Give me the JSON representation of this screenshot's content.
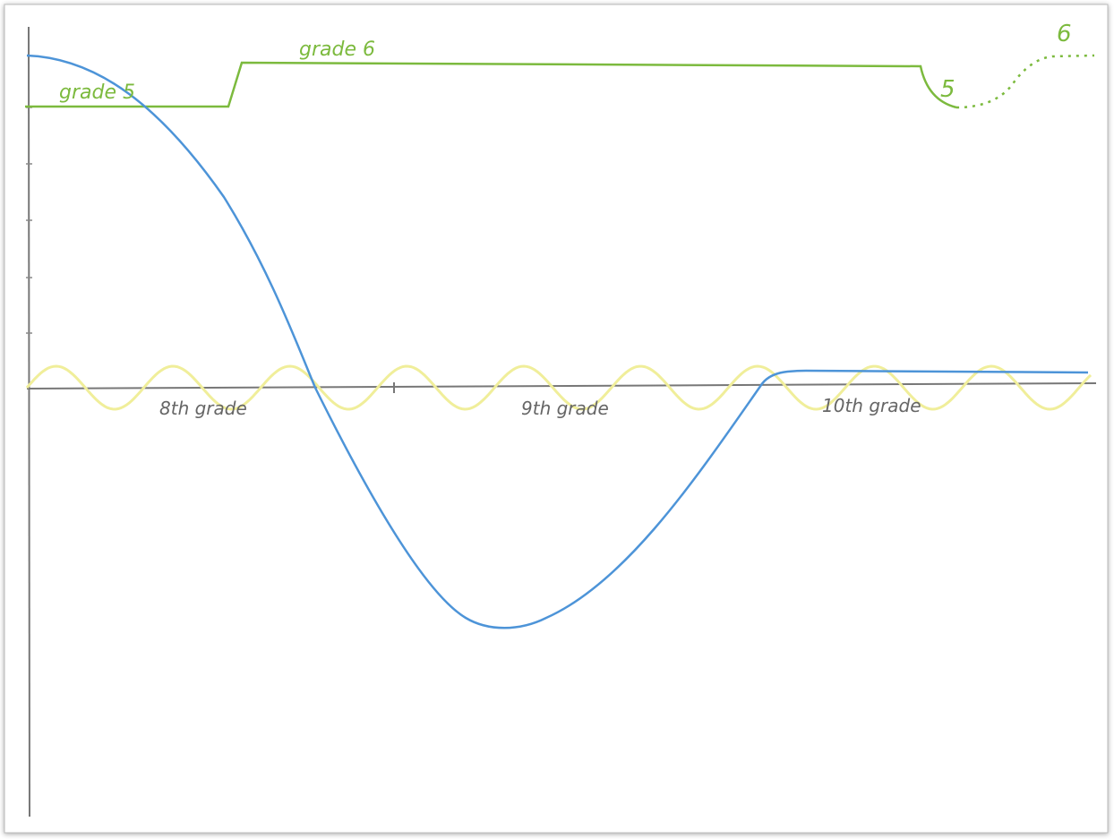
{
  "annotations": {
    "green": [
      "grade 5",
      "grade 6",
      "5",
      "6"
    ],
    "x_axis": [
      "8th grade",
      "9th grade",
      "10th grade"
    ]
  }
}
